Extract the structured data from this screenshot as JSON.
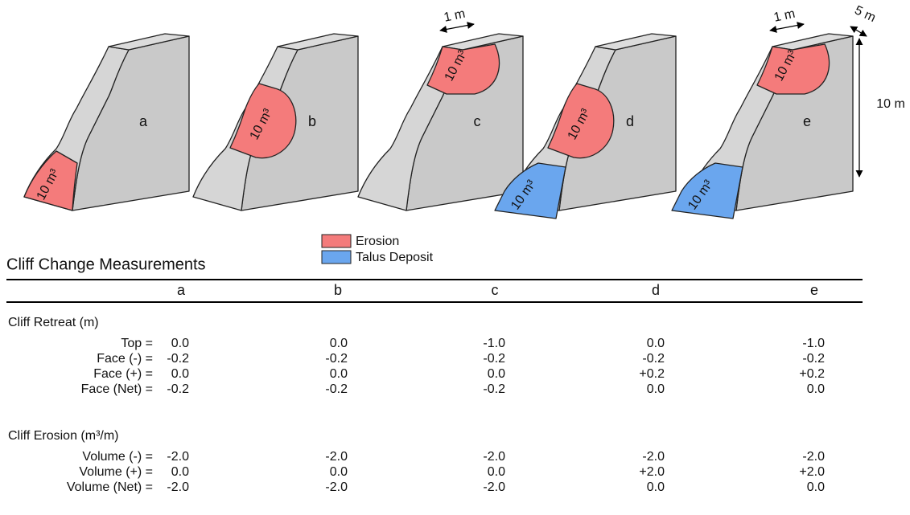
{
  "diagram": {
    "panels": [
      {
        "label": "a",
        "erosion_label": "10 m³"
      },
      {
        "label": "b",
        "erosion_label": "10 m³"
      },
      {
        "label": "c",
        "erosion_label": "10 m³",
        "dimension_labels": [
          "1 m"
        ]
      },
      {
        "label": "d",
        "erosion_label": "10 m³",
        "talus_label": "10 m³"
      },
      {
        "label": "e",
        "erosion_label": "10 m³",
        "talus_label": "10 m³",
        "dimension_labels": [
          "1 m",
          "5 m",
          "10 m"
        ]
      }
    ],
    "legend": [
      {
        "label": "Erosion",
        "color": "#f47b7b"
      },
      {
        "label": "Talus Deposit",
        "color": "#6aa6ee"
      }
    ]
  },
  "table": {
    "title": "Cliff Change Measurements",
    "columns": [
      "a",
      "b",
      "c",
      "d",
      "e"
    ],
    "sections": [
      {
        "title": "Cliff Retreat (m)",
        "rows": [
          {
            "label": "Top =",
            "values": [
              "0.0",
              "0.0",
              "-1.0",
              "0.0",
              "-1.0"
            ]
          },
          {
            "label": "Face (-) =",
            "values": [
              "-0.2",
              "-0.2",
              "-0.2",
              "-0.2",
              "-0.2"
            ]
          },
          {
            "label": "Face (+) =",
            "values": [
              "0.0",
              "0.0",
              "0.0",
              "+0.2",
              "+0.2"
            ]
          },
          {
            "label": "Face (Net) =",
            "values": [
              "-0.2",
              "-0.2",
              "-0.2",
              "0.0",
              "0.0"
            ]
          }
        ]
      },
      {
        "title": "Cliff Erosion (m³/m)",
        "rows": [
          {
            "label": "Volume (-) =",
            "values": [
              "-2.0",
              "-2.0",
              "-2.0",
              "-2.0",
              "-2.0"
            ]
          },
          {
            "label": "Volume (+) =",
            "values": [
              "0.0",
              "0.0",
              "0.0",
              "+2.0",
              "+2.0"
            ]
          },
          {
            "label": "Volume (Net) =",
            "values": [
              "-2.0",
              "-2.0",
              "-2.0",
              "0.0",
              "0.0"
            ]
          }
        ]
      }
    ]
  }
}
